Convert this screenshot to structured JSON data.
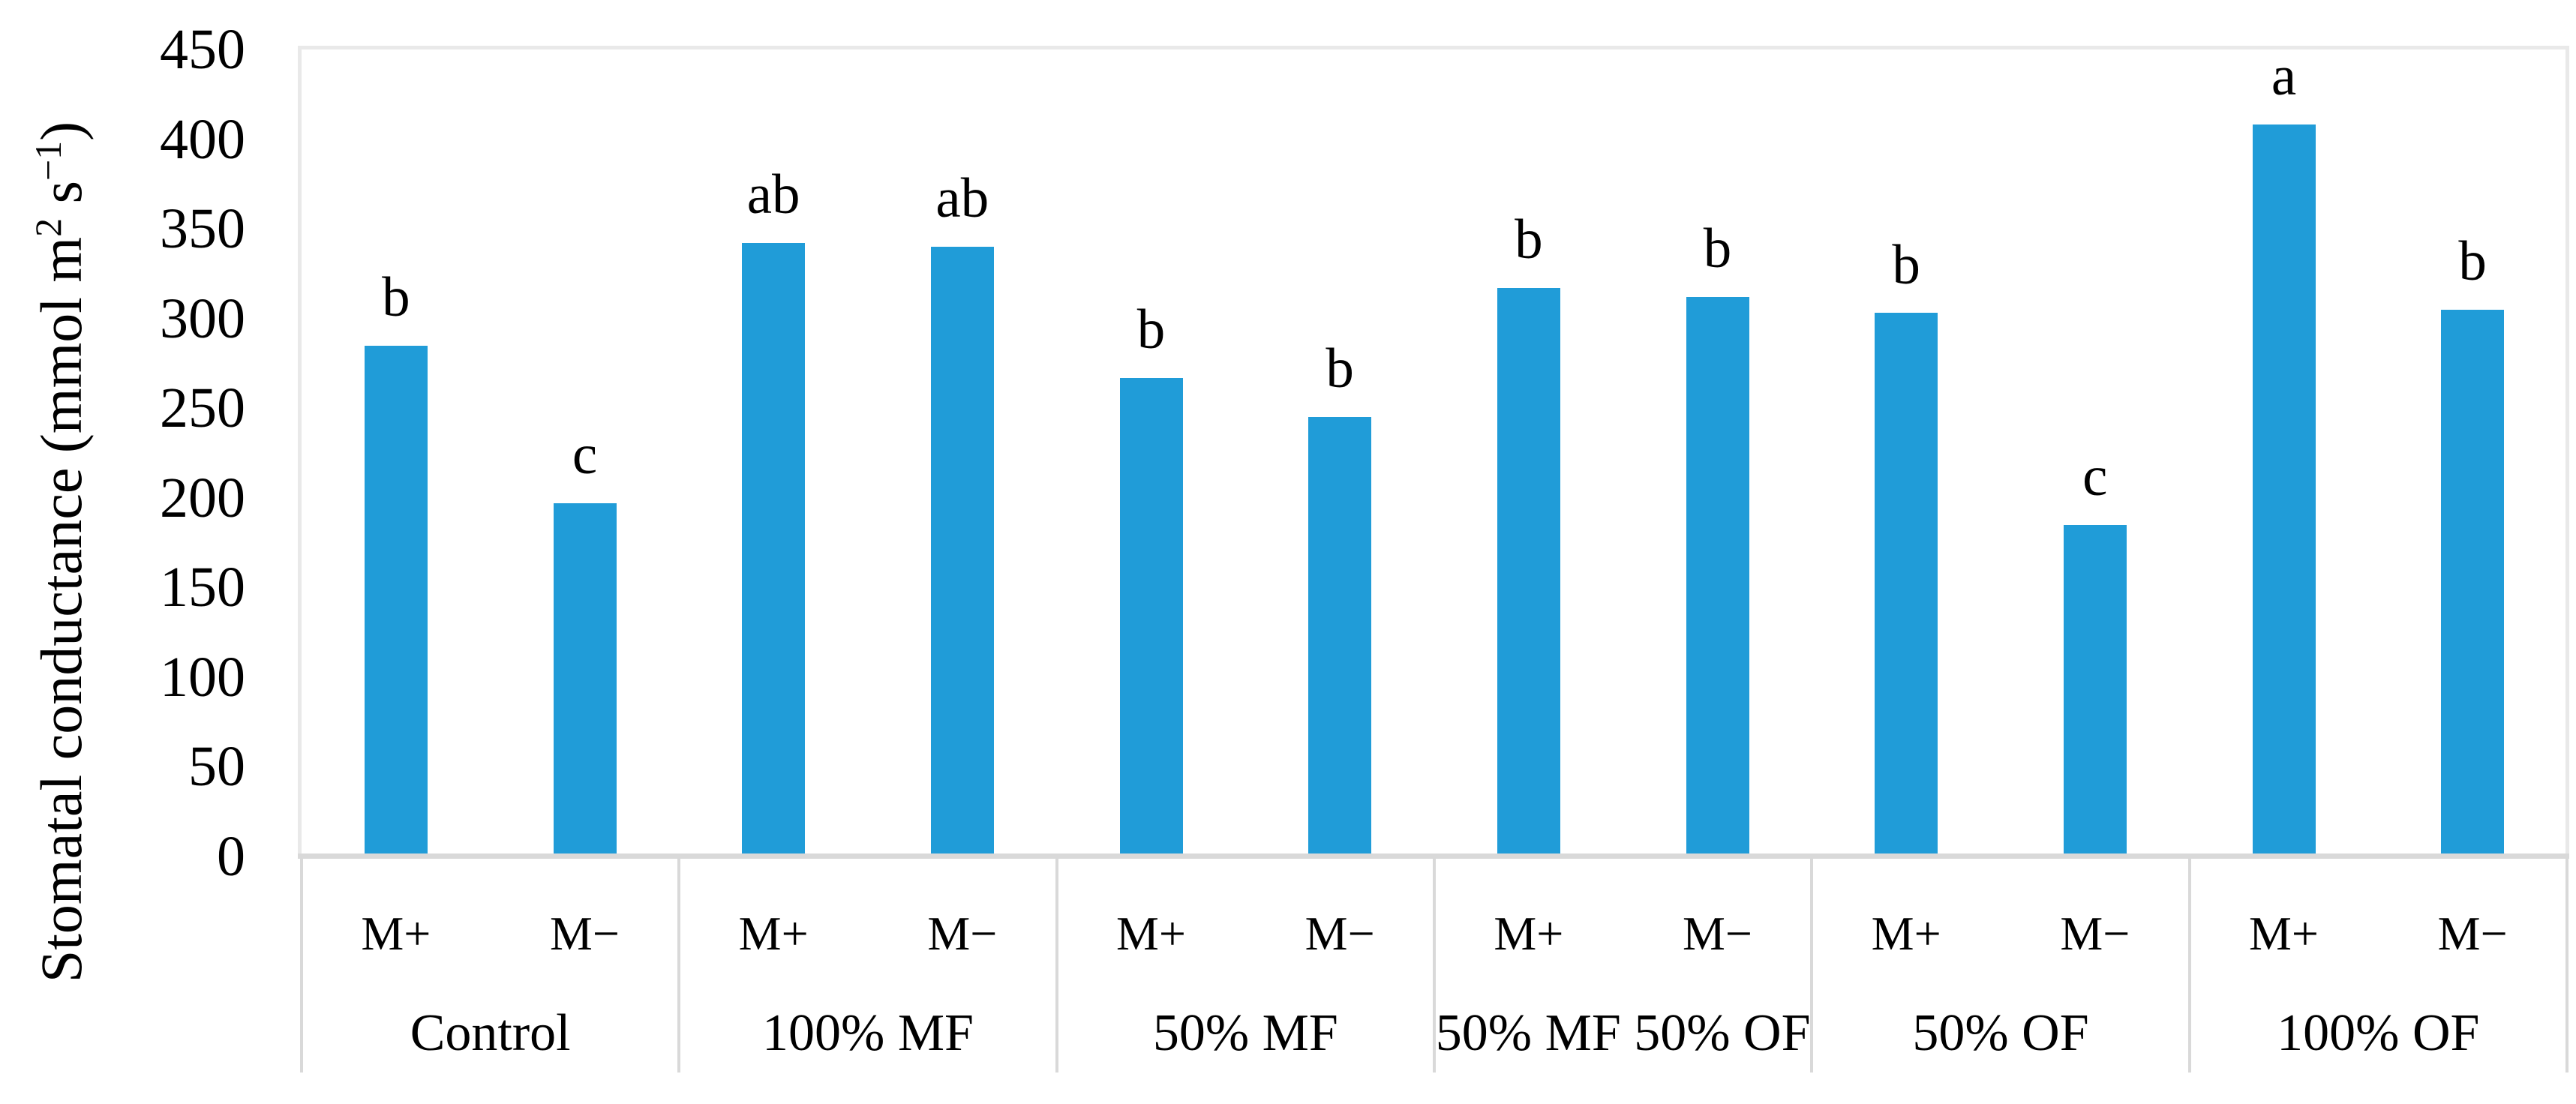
{
  "figure": {
    "background_color": "#ffffff",
    "bar_color": "#209CD8",
    "plot_border_color": "#E9E9E9",
    "axis_line_color": "#D9D9D9",
    "text_color": "#000000"
  },
  "y_axis": {
    "title_parts": {
      "base1": "Stomatal conductance (mmol m",
      "sup1": "2",
      "base2": " s",
      "sup2": "−1",
      "base3": ")"
    }
  },
  "chart_data": {
    "type": "bar",
    "title": "",
    "xlabel": "",
    "ylabel": "Stomatal conductance (mmol m² s⁻¹)",
    "ylim": [
      0,
      450
    ],
    "yticks": [
      450,
      400,
      350,
      300,
      250,
      200,
      150,
      100,
      50,
      0
    ],
    "grid": false,
    "legend": false,
    "bar_color": "#209CD8",
    "groups": [
      "Control",
      "100% MF",
      "50% MF",
      "50% MF 50% OF",
      "50% OF",
      "100% OF"
    ],
    "sub_categories": [
      "M+",
      "M−"
    ],
    "bars": [
      {
        "group": "Control",
        "sub": "M+",
        "value": 285,
        "letter": "b"
      },
      {
        "group": "Control",
        "sub": "M−",
        "value": 197,
        "letter": "c"
      },
      {
        "group": "100% MF",
        "sub": "M+",
        "value": 342,
        "letter": "ab"
      },
      {
        "group": "100% MF",
        "sub": "M−",
        "value": 340,
        "letter": "ab"
      },
      {
        "group": "50% MF",
        "sub": "M+",
        "value": 267,
        "letter": "b"
      },
      {
        "group": "50% MF",
        "sub": "M−",
        "value": 245,
        "letter": "b"
      },
      {
        "group": "50% MF 50% OF",
        "sub": "M+",
        "value": 317,
        "letter": "b"
      },
      {
        "group": "50% MF 50% OF",
        "sub": "M−",
        "value": 312,
        "letter": "b"
      },
      {
        "group": "50% OF",
        "sub": "M+",
        "value": 303,
        "letter": "b"
      },
      {
        "group": "50% OF",
        "sub": "M−",
        "value": 185,
        "letter": "c"
      },
      {
        "group": "100% OF",
        "sub": "M+",
        "value": 408,
        "letter": "a"
      },
      {
        "group": "100% OF",
        "sub": "M−",
        "value": 305,
        "letter": "b"
      }
    ]
  }
}
